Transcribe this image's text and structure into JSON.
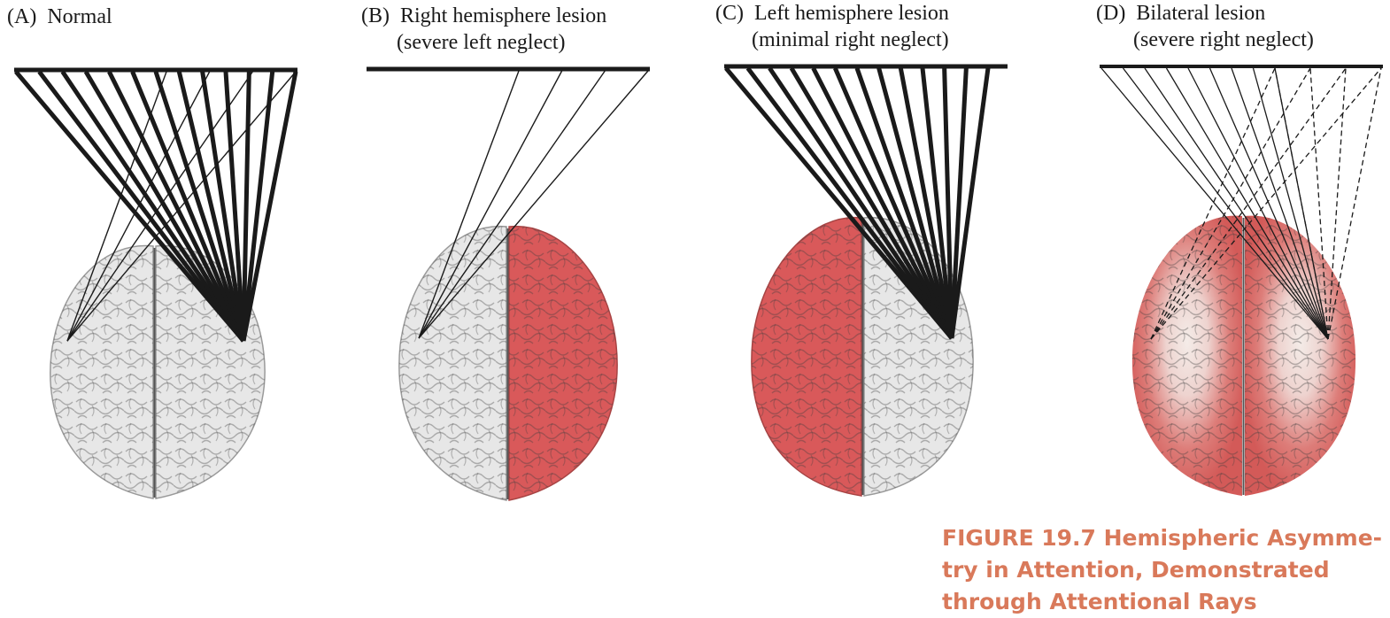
{
  "panels": [
    {
      "id": "A",
      "letter": "(A)",
      "title_lines": [
        "Normal"
      ]
    },
    {
      "id": "B",
      "letter": "(B)",
      "title_lines": [
        "Right hemisphere lesion",
        "(severe left neglect)"
      ]
    },
    {
      "id": "C",
      "letter": "(C)",
      "title_lines": [
        "Left hemisphere lesion",
        "(minimal right neglect)"
      ]
    },
    {
      "id": "D",
      "letter": "(D)",
      "title_lines": [
        "Bilateral lesion",
        "(severe right neglect)"
      ]
    }
  ],
  "caption": {
    "lines": [
      "FIGURE 19.7   Hemispheric Asymme-",
      "try in Attention, Demonstrated",
      "through Attentional Rays"
    ]
  },
  "colors": {
    "lesion": "#d9595a",
    "healthy": "#e7e7e7",
    "caption": "#d9795a",
    "ink": "#1a1a1a"
  }
}
